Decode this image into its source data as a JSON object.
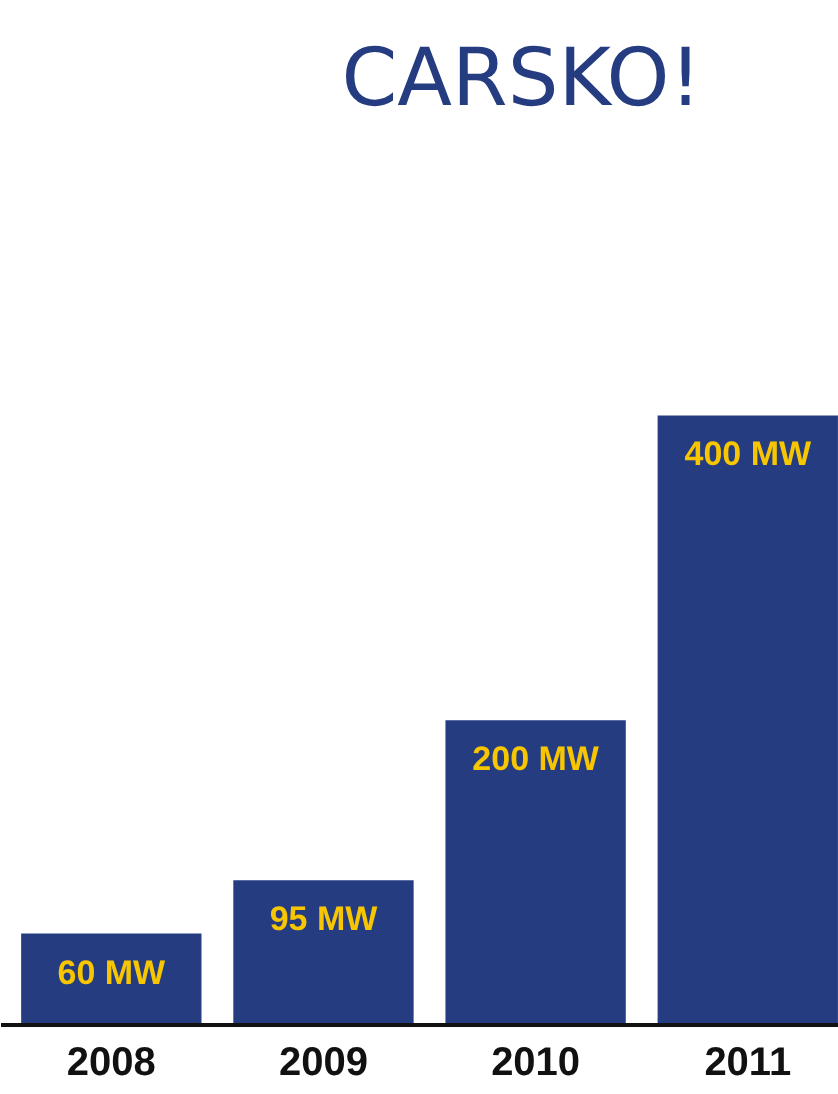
{
  "chart_data": {
    "type": "bar",
    "categories": [
      "2008",
      "2009",
      "2010",
      "2011"
    ],
    "values": [
      60,
      95,
      200,
      400
    ],
    "color": "#253c80",
    "value_labels": [
      "60 MW",
      "95 MW",
      "200 MW",
      "400 MW"
    ],
    "annotations": [
      "CARSKO!"
    ],
    "grid": false
  }
}
